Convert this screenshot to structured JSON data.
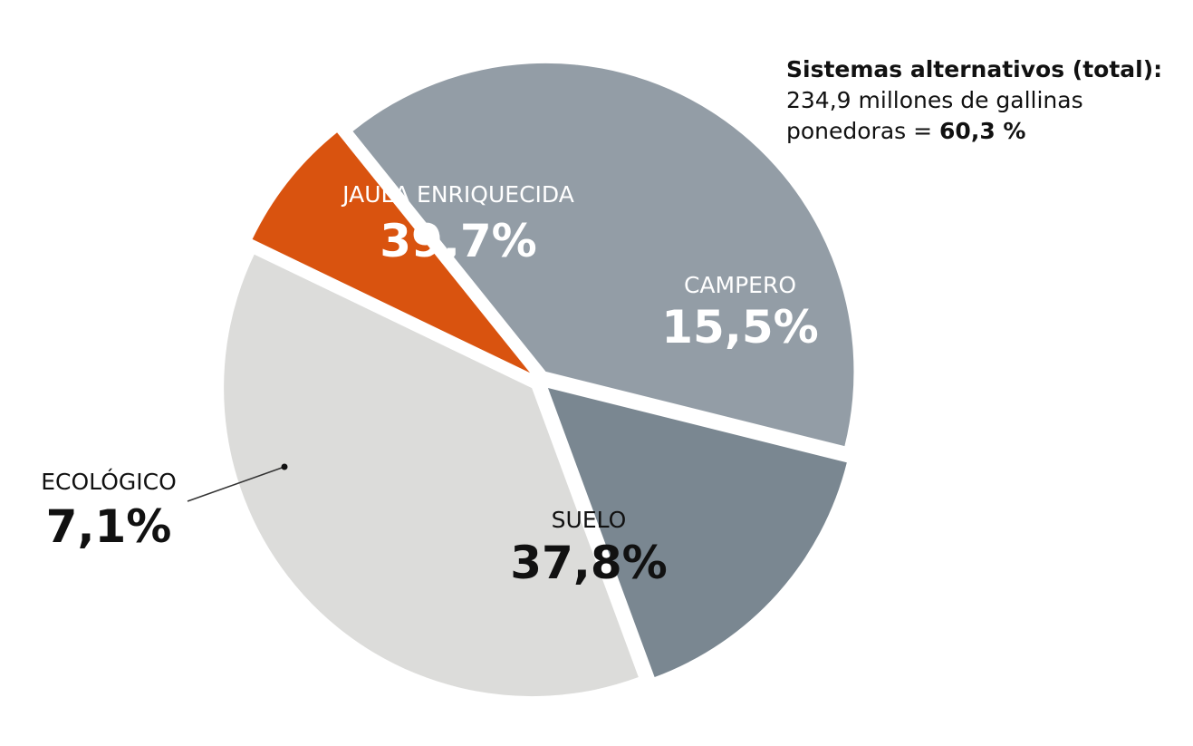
{
  "note": {
    "heading": "Sistemas alternativos (total):",
    "line2": "234,9 millones de gallinas",
    "line3_prefix": "ponedoras = ",
    "line3_value": "60,3 %"
  },
  "chart_data": {
    "type": "pie",
    "title": "",
    "slices": [
      {
        "label": "CAMPERO",
        "value": 15.5,
        "display": "15,5%",
        "color": "#7a8791"
      },
      {
        "label": "SUELO",
        "value": 37.8,
        "display": "37,8%",
        "color": "#dcdcda"
      },
      {
        "label": "ECOLÓGICO",
        "value": 7.1,
        "display": "7,1%",
        "color": "#d9530f"
      },
      {
        "label": "JAULA ENRIQUECIDA",
        "value": 39.7,
        "display": "39,7%",
        "color": "#939da6"
      }
    ]
  }
}
